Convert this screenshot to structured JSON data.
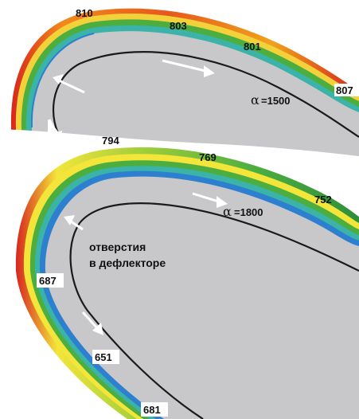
{
  "top_blade": {
    "temps_top": [
      "810",
      "803",
      "801",
      "807"
    ],
    "temps_inner": [
      "794"
    ],
    "alpha_symbol": "α",
    "alpha_value": "=1500"
  },
  "bottom_blade": {
    "temps_top": [
      "769",
      "752"
    ],
    "temps_side": [
      "687",
      "651",
      "681"
    ],
    "alpha_symbol": "α",
    "alpha_value": "=1800",
    "note_line1": "отверстия",
    "note_line2": "в дефлекторе"
  },
  "colors": {
    "hot": "#d7261d",
    "warm": "#f28a1b",
    "yellow": "#f3e53a",
    "green": "#4bae3f",
    "teal": "#3bb3a8",
    "blue": "#2d7fd0",
    "metal": "#c8c8cb",
    "outline": "#1a1a1a"
  }
}
